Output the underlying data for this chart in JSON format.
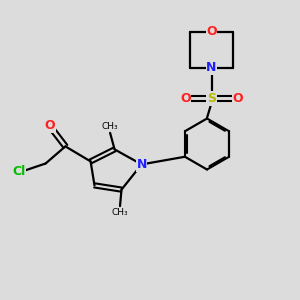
{
  "background_color": "#dcdcdc",
  "atom_colors": {
    "C": "#000000",
    "N": "#2020ff",
    "O": "#ff2020",
    "S": "#b8b800",
    "Cl": "#00bb00"
  },
  "figsize": [
    3.0,
    3.0
  ],
  "dpi": 100,
  "xlim": [
    0,
    10
  ],
  "ylim": [
    0,
    10
  ]
}
